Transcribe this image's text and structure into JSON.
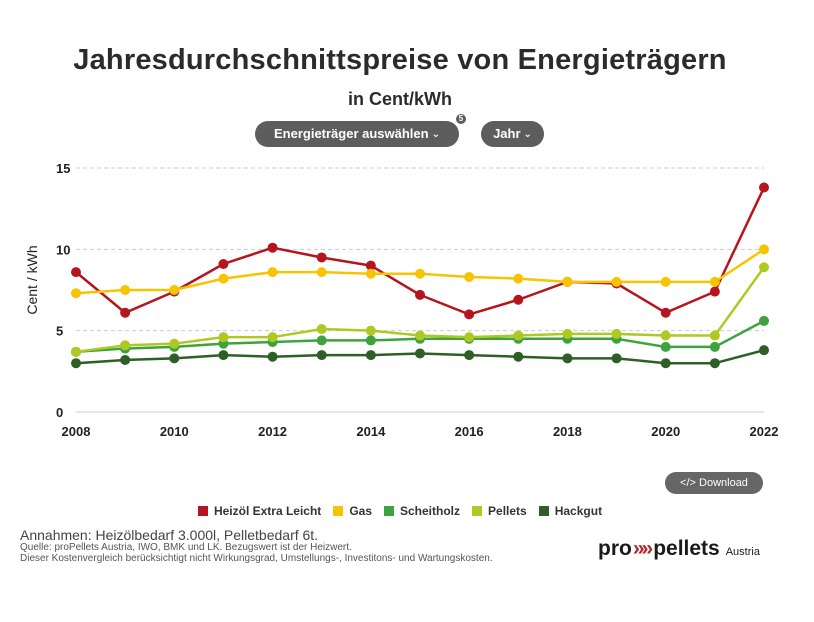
{
  "title": "Jahresdurchschnittspreise von Energieträgern",
  "subtitle": "in Cent/kWh",
  "controls": {
    "energy_select_label": "Energieträger auswählen",
    "year_select_label": "Jahr",
    "badge_text": "5",
    "download_label": "</> Download"
  },
  "footer": {
    "assumptions": "Annahmen: Heizölbedarf 3.000l, Pelletbedarf 6t.",
    "source": "Quelle: proPellets Austria, IWO, BMK und LK. Bezugswert ist der Heizwert.",
    "note": "Dieser Kostenvergleich berücksichtigt nicht Wirkungsgrad, Umstellungs-, Investitons- und Wartungskosten."
  },
  "logo": {
    "pro": "pro",
    "arrows": "»»",
    "pellets": "pellets",
    "sub": "Austria"
  },
  "chart_data": {
    "type": "line",
    "ylabel": "Cent / kWh",
    "xlabel": "",
    "ylim": [
      0,
      15
    ],
    "yticks": [
      0,
      5,
      10,
      15
    ],
    "xlim": [
      2008,
      2022
    ],
    "xticks": [
      2008,
      2010,
      2012,
      2014,
      2016,
      2018,
      2020,
      2022
    ],
    "grid": true,
    "legend_position": "bottom",
    "x": [
      2008,
      2009,
      2010,
      2011,
      2012,
      2013,
      2014,
      2015,
      2016,
      2017,
      2018,
      2019,
      2020,
      2021,
      2022
    ],
    "series": [
      {
        "name": "Heizöl Extra Leicht",
        "color": "#b5151f",
        "values": [
          8.6,
          6.1,
          7.4,
          9.1,
          10.1,
          9.5,
          9.0,
          7.2,
          6.0,
          6.9,
          8.0,
          7.9,
          6.1,
          7.4,
          13.8
        ]
      },
      {
        "name": "Gas",
        "color": "#f6c400",
        "values": [
          7.3,
          7.5,
          7.5,
          8.2,
          8.6,
          8.6,
          8.5,
          8.5,
          8.3,
          8.2,
          8.0,
          8.0,
          8.0,
          8.0,
          10.0
        ]
      },
      {
        "name": "Scheitholz",
        "color": "#3da33d",
        "values": [
          3.7,
          3.9,
          4.0,
          4.2,
          4.3,
          4.4,
          4.4,
          4.5,
          4.5,
          4.5,
          4.5,
          4.5,
          4.0,
          4.0,
          5.6
        ]
      },
      {
        "name": "Pellets",
        "color": "#b0c822",
        "values": [
          3.7,
          4.1,
          4.2,
          4.6,
          4.6,
          5.1,
          5.0,
          4.7,
          4.6,
          4.7,
          4.8,
          4.8,
          4.7,
          4.7,
          8.9
        ]
      },
      {
        "name": "Hackgut",
        "color": "#2d5f27",
        "values": [
          3.0,
          3.2,
          3.3,
          3.5,
          3.4,
          3.5,
          3.5,
          3.6,
          3.5,
          3.4,
          3.3,
          3.3,
          3.0,
          3.0,
          3.8
        ]
      }
    ]
  }
}
